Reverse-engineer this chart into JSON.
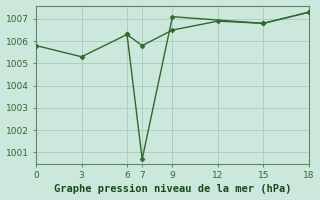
{
  "line1_x": [
    0,
    3,
    6,
    7,
    9,
    12,
    15,
    18
  ],
  "line1_y": [
    1005.8,
    1005.3,
    1006.3,
    1005.8,
    1006.5,
    1006.9,
    1006.8,
    1007.3
  ],
  "line2_x": [
    6,
    7,
    9,
    15,
    18
  ],
  "line2_y": [
    1006.3,
    1000.7,
    1007.1,
    1006.8,
    1007.3
  ],
  "line_color": "#2d6a2d",
  "bg_color": "#cce8dc",
  "grid_color": "#aaccbb",
  "xlabel": "Graphe pression niveau de la mer (hPa)",
  "xlabel_color": "#1a4a1a",
  "tick_color": "#2d6a2d",
  "spine_color": "#5a8a5a",
  "xlim": [
    0,
    18
  ],
  "ylim": [
    1000.5,
    1007.6
  ],
  "xticks": [
    0,
    3,
    6,
    7,
    9,
    12,
    15,
    18
  ],
  "yticks": [
    1001,
    1002,
    1003,
    1004,
    1005,
    1006,
    1007
  ],
  "marker": "D",
  "markersize": 2.5,
  "linewidth": 1.0,
  "xlabel_fontsize": 7.5,
  "tick_fontsize": 6.5
}
